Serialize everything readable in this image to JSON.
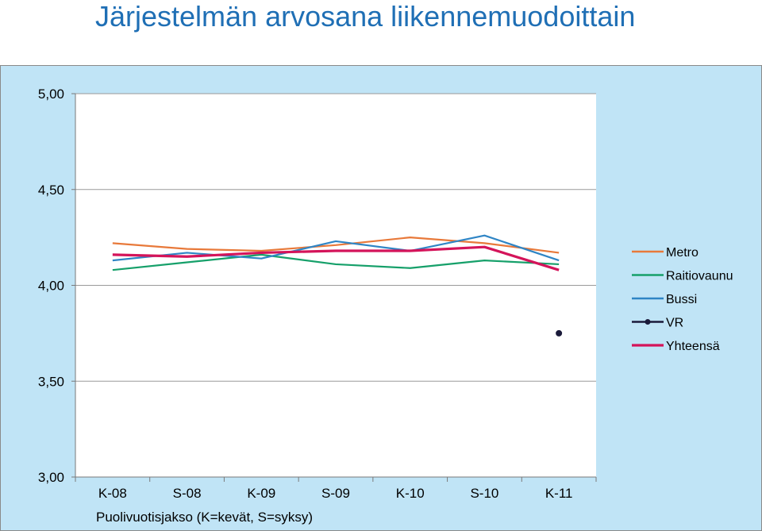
{
  "title": "Järjestelmän arvosana liikennemuodoittain",
  "chart_data": {
    "type": "line",
    "categories": [
      "K-08",
      "S-08",
      "K-09",
      "S-09",
      "K-10",
      "S-10",
      "K-11"
    ],
    "xlabel": "Puolivuotisjakso (K=kevät, S=syksy)",
    "ylabel": "",
    "ylim": [
      3.0,
      5.0
    ],
    "yticks": [
      3.0,
      3.5,
      4.0,
      4.5,
      5.0
    ],
    "ytick_labels": [
      "3,00",
      "3,50",
      "4,00",
      "4,50",
      "5,00"
    ],
    "grid": true,
    "legend_position": "right",
    "series": [
      {
        "name": "Metro",
        "color": "#e8793a",
        "marker": false,
        "values": [
          4.22,
          4.19,
          4.18,
          4.21,
          4.25,
          4.22,
          4.17
        ]
      },
      {
        "name": "Raitiovaunu",
        "color": "#16a06a",
        "marker": false,
        "values": [
          4.08,
          4.12,
          4.16,
          4.11,
          4.09,
          4.13,
          4.11
        ]
      },
      {
        "name": "Bussi",
        "color": "#2f85c5",
        "marker": false,
        "values": [
          4.13,
          4.17,
          4.14,
          4.23,
          4.18,
          4.26,
          4.13
        ]
      },
      {
        "name": "VR",
        "color": "#1a1a3a",
        "marker": true,
        "values": [
          null,
          null,
          null,
          null,
          null,
          null,
          3.75
        ]
      },
      {
        "name": "Yhteensä",
        "color": "#d4145a",
        "marker": false,
        "values": [
          4.16,
          4.15,
          4.17,
          4.18,
          4.18,
          4.2,
          4.08
        ]
      }
    ]
  }
}
